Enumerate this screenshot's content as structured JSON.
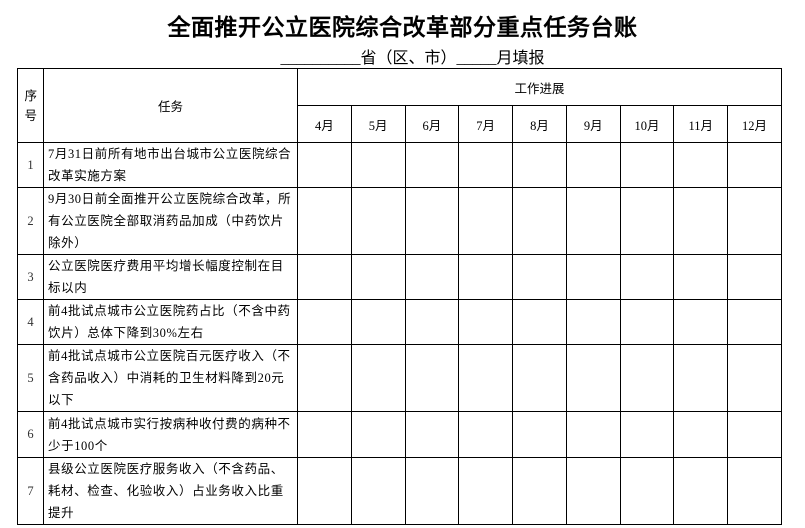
{
  "title": "全面推开公立医院综合改革部分重点任务台账",
  "subtitle": "__________省（区、市）_____月填报",
  "table": {
    "headers": {
      "seq": "序号",
      "task": "任务",
      "progress": "工作进展"
    },
    "months": [
      "4月",
      "5月",
      "6月",
      "7月",
      "8月",
      "9月",
      "10月",
      "11月",
      "12月"
    ],
    "rows": [
      {
        "seq": "1",
        "task": "7月31日前所有地市出台城市公立医院综合改革实施方案"
      },
      {
        "seq": "2",
        "task": "9月30日前全面推开公立医院综合改革，所有公立医院全部取消药品加成（中药饮片除外）"
      },
      {
        "seq": "3",
        "task": "公立医院医疗费用平均增长幅度控制在目标以内"
      },
      {
        "seq": "4",
        "task": "前4批试点城市公立医院药占比（不含中药饮片）总体下降到30%左右"
      },
      {
        "seq": "5",
        "task": "前4批试点城市公立医院百元医疗收入（不含药品收入）中消耗的卫生材料降到20元以下"
      },
      {
        "seq": "6",
        "task": "前4批试点城市实行按病种收付费的病种不少于100个"
      },
      {
        "seq": "7",
        "task": "县级公立医院医疗服务收入（不含药品、耗材、检查、化验收入）占业务收入比重提升"
      }
    ]
  }
}
